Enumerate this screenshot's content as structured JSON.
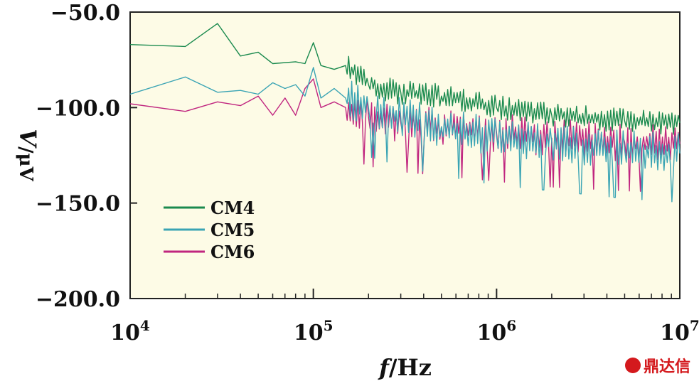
{
  "chart_data": {
    "type": "line",
    "xscale": "log",
    "xlim": [
      10000,
      10000000
    ],
    "ylim": [
      -200,
      -50
    ],
    "xticks": [
      {
        "value": 10000,
        "base": "10",
        "exp": "4"
      },
      {
        "value": 100000,
        "base": "10",
        "exp": "5"
      },
      {
        "value": 1000000,
        "base": "10",
        "exp": "6"
      },
      {
        "value": 10000000,
        "base": "10",
        "exp": "7"
      }
    ],
    "yticks": [
      {
        "value": -50,
        "label": "−50.0"
      },
      {
        "value": -100,
        "label": "−100.0"
      },
      {
        "value": -150,
        "label": "−150.0"
      },
      {
        "value": -200,
        "label": "−200.0"
      }
    ],
    "xlabel": {
      "italic": "f",
      "rest": "/Hz"
    },
    "ylabel": {
      "italic": "V",
      "rest": "/μV"
    },
    "legend_position": "lower-left",
    "background": "#fdfbe6",
    "series": [
      {
        "name": "CM4",
        "color": "#1a8a4e",
        "x": [
          10000,
          20000,
          30000,
          40000,
          50000,
          60000,
          80000,
          90000,
          100000,
          110000,
          130000,
          150000,
          200000,
          300000,
          500000,
          1000000,
          2000000,
          5000000,
          10000000
        ],
        "y": [
          -67,
          -68,
          -56,
          -73,
          -71,
          -77,
          -76,
          -77,
          -66,
          -78,
          -80,
          -78,
          -88,
          -92,
          -94,
          -100,
          -104,
          -107,
          -108
        ]
      },
      {
        "name": "CM5",
        "color": "#3aa4b4",
        "x": [
          10000,
          20000,
          30000,
          40000,
          50000,
          60000,
          70000,
          80000,
          90000,
          100000,
          110000,
          130000,
          150000,
          200000,
          300000,
          500000,
          1000000,
          2000000,
          5000000,
          10000000
        ],
        "y": [
          -93,
          -84,
          -92,
          -91,
          -93,
          -87,
          -90,
          -88,
          -94,
          -79,
          -95,
          -90,
          -95,
          -100,
          -105,
          -110,
          -115,
          -118,
          -122,
          -124
        ]
      },
      {
        "name": "CM6",
        "color": "#c0257f",
        "x": [
          10000,
          20000,
          30000,
          40000,
          50000,
          60000,
          70000,
          80000,
          90000,
          100000,
          110000,
          130000,
          150000,
          200000,
          300000,
          500000,
          1000000,
          2000000,
          5000000,
          10000000
        ],
        "y": [
          -98,
          -102,
          -97,
          -99,
          -94,
          -104,
          -95,
          -104,
          -90,
          -85,
          -100,
          -97,
          -100,
          -105,
          -108,
          -110,
          -113,
          -116,
          -118,
          -119
        ]
      }
    ]
  },
  "watermark": {
    "text": "鼎达信"
  }
}
